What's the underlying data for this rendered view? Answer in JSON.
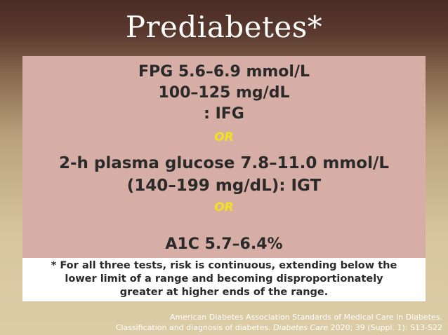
{
  "slide": {
    "title": "Prediabetes*"
  },
  "criteria": {
    "fpg_line1": "FPG 5.6–6.9 mmol/L",
    "fpg_line2": "100–125 mg/dL",
    "fpg_line3": ": IFG",
    "or_1": "OR",
    "ogtt_line1": "2-h plasma glucose 7.8–11.0 mmol/L",
    "ogtt_line2": "(140–199 mg/dL): IGT",
    "or_2": "OR",
    "a1c_line": "A1C 5.7–6.4%"
  },
  "footnote": {
    "line1": "* For all three tests, risk is continuous, extending below the",
    "line2": "lower limit of a range and becoming disproportionately",
    "line3": "greater at higher ends of the range."
  },
  "reference": {
    "line1": "American Diabetes Association Standards of Medical Care in Diabetes.",
    "line2_prefix": "Classification and diagnosis of diabetes. ",
    "journal": "Diabetes Care",
    "line2_suffix": " 2020; 39 (Suppl. 1): S13-S22"
  },
  "colors": {
    "content_background": "#d7aea5",
    "or_text": "#f2e21a",
    "note_background": "#ffffff"
  }
}
